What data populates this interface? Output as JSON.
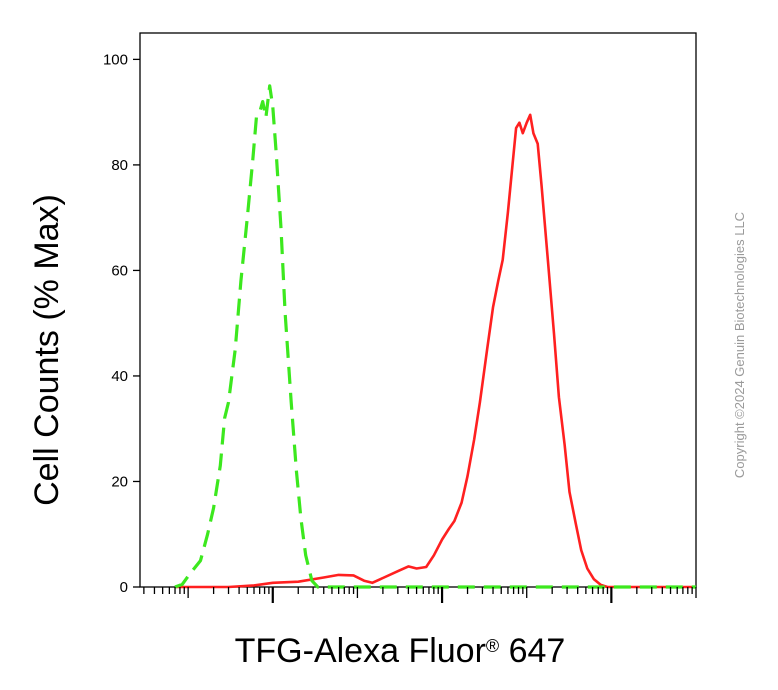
{
  "chart_data": {
    "type": "line",
    "xlabel": {
      "main": "TFG-Alexa Fluor",
      "mark": "®",
      "suffix": " 647"
    },
    "ylabel": "Cell Counts (% Max)",
    "xscale": "log",
    "xlim": [
      2.7,
      10000000
    ],
    "ylim": [
      0,
      105
    ],
    "yticks": [
      0,
      20,
      40,
      60,
      80,
      100
    ],
    "ytick_labels": [
      "0",
      "20",
      "40",
      "60",
      "80",
      "100"
    ],
    "xmajor_ticks": [
      100,
      10000,
      1000000
    ],
    "xtick_labels": [],
    "grid": false,
    "legend": "none",
    "copyright": "Copyright ©2024 Genuin Biotechnologies LLC",
    "series": [
      {
        "color": "#ff2020",
        "style": "solid",
        "points": [
          [
            7,
            0
          ],
          [
            30,
            0
          ],
          [
            60,
            0.3
          ],
          [
            100,
            0.8
          ],
          [
            200,
            1
          ],
          [
            400,
            1.8
          ],
          [
            600,
            2.3
          ],
          [
            900,
            2.2
          ],
          [
            1200,
            1.2
          ],
          [
            1500,
            0.8
          ],
          [
            2000,
            1.7
          ],
          [
            3000,
            3
          ],
          [
            4000,
            3.9
          ],
          [
            5000,
            3.5
          ],
          [
            6500,
            3.8
          ],
          [
            8000,
            6
          ],
          [
            10000,
            9
          ],
          [
            12000,
            11
          ],
          [
            14000,
            12.5
          ],
          [
            17000,
            16
          ],
          [
            20000,
            21
          ],
          [
            24000,
            28
          ],
          [
            28000,
            35
          ],
          [
            34000,
            45
          ],
          [
            40000,
            53
          ],
          [
            46000,
            58
          ],
          [
            52000,
            62
          ],
          [
            60000,
            71
          ],
          [
            68000,
            80
          ],
          [
            75000,
            87
          ],
          [
            82000,
            88
          ],
          [
            90000,
            86
          ],
          [
            100000,
            88
          ],
          [
            110000,
            89.5
          ],
          [
            120000,
            86
          ],
          [
            135000,
            84
          ],
          [
            150000,
            76
          ],
          [
            180000,
            61
          ],
          [
            210000,
            48
          ],
          [
            240000,
            36
          ],
          [
            280000,
            27
          ],
          [
            320000,
            18
          ],
          [
            380000,
            12
          ],
          [
            440000,
            7
          ],
          [
            520000,
            3.5
          ],
          [
            620000,
            1.5
          ],
          [
            750000,
            0.4
          ],
          [
            900000,
            0
          ],
          [
            10000000,
            0
          ]
        ]
      },
      {
        "color": "#3ce81e",
        "style": "dashed",
        "points": [
          [
            7,
            0
          ],
          [
            8.5,
            0.5
          ],
          [
            10.5,
            2.5
          ],
          [
            14,
            5
          ],
          [
            17,
            10
          ],
          [
            20,
            15
          ],
          [
            24,
            23
          ],
          [
            27,
            32
          ],
          [
            30,
            35
          ],
          [
            36,
            45
          ],
          [
            42,
            58
          ],
          [
            50,
            70
          ],
          [
            58,
            81
          ],
          [
            64,
            89
          ],
          [
            70,
            90
          ],
          [
            76,
            92
          ],
          [
            83,
            89
          ],
          [
            92,
            95
          ],
          [
            100,
            91
          ],
          [
            110,
            82
          ],
          [
            125,
            68
          ],
          [
            140,
            52
          ],
          [
            165,
            35
          ],
          [
            190,
            22
          ],
          [
            215,
            13
          ],
          [
            245,
            6
          ],
          [
            290,
            1.2
          ],
          [
            340,
            0
          ],
          [
            10000000,
            0
          ]
        ]
      }
    ]
  }
}
